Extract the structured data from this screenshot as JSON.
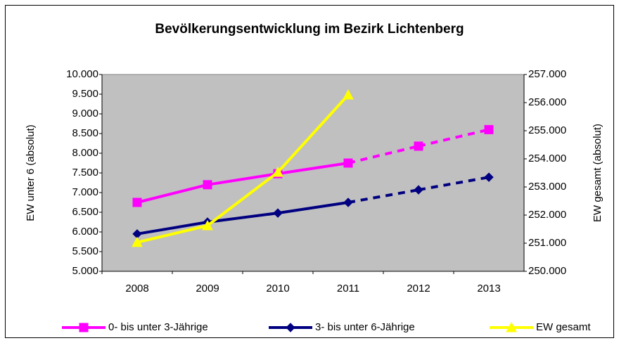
{
  "chart_data": {
    "type": "line",
    "title": "Bevölkerungsentwicklung im Bezirk Lichtenberg",
    "ylabel": "EW unter 6 (absolut)",
    "y2label": "EW gesamt (absolut)",
    "categories": [
      "2008",
      "2009",
      "2010",
      "2011",
      "2012",
      "2013"
    ],
    "series": [
      {
        "name": "0- bis unter 3-Jährige",
        "color": "#ff00ff",
        "marker": "square",
        "dashed_from": 3,
        "values": [
          6750,
          7200,
          7480,
          7750,
          8180,
          8600
        ]
      },
      {
        "name": "3- bis unter 6-Jährige",
        "color": "#000080",
        "marker": "diamond",
        "dashed_from": 3,
        "values": [
          5950,
          6250,
          6480,
          6750,
          7070,
          7390
        ]
      },
      {
        "name": "EW gesamt",
        "color": "#ffff00",
        "marker": "triangle",
        "axis": "y2",
        "values": [
          251030,
          251625,
          253525,
          256275,
          null,
          null
        ]
      }
    ],
    "ylim": [
      5000,
      10000
    ],
    "yticks": [
      {
        "value": 5000,
        "label": "5.000"
      },
      {
        "value": 5500,
        "label": "5.500"
      },
      {
        "value": 6000,
        "label": "6.000"
      },
      {
        "value": 6500,
        "label": "6.500"
      },
      {
        "value": 7000,
        "label": "7.000"
      },
      {
        "value": 7500,
        "label": "7.500"
      },
      {
        "value": 8000,
        "label": "8.000"
      },
      {
        "value": 8500,
        "label": "8.500"
      },
      {
        "value": 9000,
        "label": "9.000"
      },
      {
        "value": 9500,
        "label": "9.500"
      },
      {
        "value": 10000,
        "label": "10.000"
      }
    ],
    "y2lim": [
      250000,
      257000
    ],
    "y2ticks": [
      {
        "value": 250000,
        "label": "250.000"
      },
      {
        "value": 251000,
        "label": "251.000"
      },
      {
        "value": 252000,
        "label": "252.000"
      },
      {
        "value": 253000,
        "label": "253.000"
      },
      {
        "value": 254000,
        "label": "254.000"
      },
      {
        "value": 255000,
        "label": "255.000"
      },
      {
        "value": 256000,
        "label": "256.000"
      },
      {
        "value": 257000,
        "label": "257.000"
      }
    ],
    "grid": false,
    "legend": "bottom",
    "plot_background": "#c0c0c0"
  }
}
